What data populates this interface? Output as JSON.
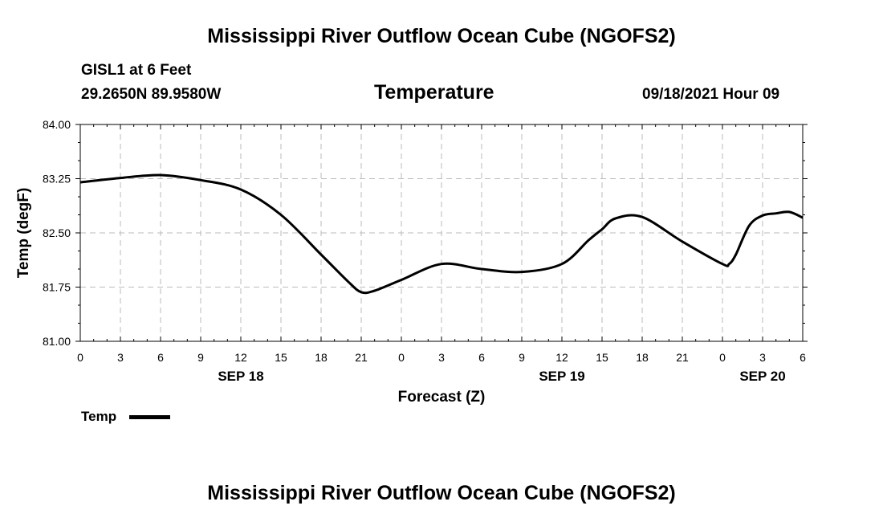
{
  "header": {
    "title": "Mississippi River Outflow Ocean Cube (NGOFS2)",
    "station": "GISL1 at 6 Feet",
    "coords": "29.2650N  89.9580W",
    "date": "09/18/2021 Hour 09"
  },
  "footer": {
    "title": "Mississippi River Outflow Ocean Cube (NGOFS2)"
  },
  "legend": {
    "label": "Temp"
  },
  "colors": {
    "line": "#000000",
    "grid": "#bbbbbb"
  },
  "chart_data": {
    "type": "line",
    "title": "Temperature",
    "xlabel": "Forecast (Z)",
    "ylabel": "Temp (degF)",
    "xlim": [
      0,
      54
    ],
    "ylim": [
      81.0,
      84.0
    ],
    "yticks": [
      "84.00",
      "83.25",
      "82.50",
      "81.75",
      "81.00"
    ],
    "ytick_values": [
      84.0,
      83.25,
      82.5,
      81.75,
      81.0
    ],
    "xtick_labels": [
      "0",
      "3",
      "6",
      "9",
      "12",
      "15",
      "18",
      "21",
      "0",
      "3",
      "6",
      "9",
      "12",
      "15",
      "18",
      "21",
      "0",
      "3",
      "6"
    ],
    "date_labels": [
      {
        "label": "SEP 18",
        "hour": 12
      },
      {
        "label": "SEP 19",
        "hour": 36
      },
      {
        "label": "SEP 20",
        "hour": 51
      }
    ],
    "grid": true,
    "series": [
      {
        "name": "Temp",
        "x": [
          0,
          3,
          6,
          9,
          12,
          15,
          18,
          20,
          21,
          22,
          24,
          27,
          30,
          33,
          36,
          38,
          39,
          40,
          42,
          45,
          48,
          48.5,
          49,
          50,
          51,
          52,
          53,
          54
        ],
        "y": [
          83.2,
          83.26,
          83.3,
          83.23,
          83.1,
          82.75,
          82.2,
          81.83,
          81.68,
          81.7,
          81.85,
          82.07,
          82.0,
          81.96,
          82.07,
          82.4,
          82.55,
          82.7,
          82.72,
          82.38,
          82.07,
          82.07,
          82.2,
          82.6,
          82.74,
          82.77,
          82.79,
          82.71
        ]
      }
    ]
  }
}
